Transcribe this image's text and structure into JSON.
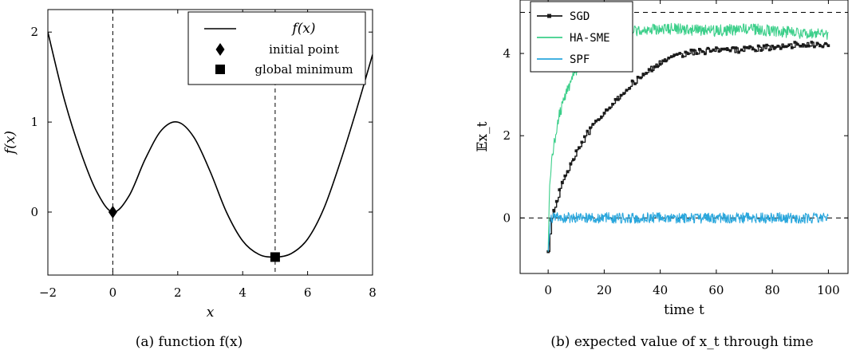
{
  "chart_data": [
    {
      "type": "line",
      "caption": "(a) function f(x)",
      "xlabel": "x",
      "ylabel": "f(x)",
      "xlim": [
        -2,
        8
      ],
      "ylim": [
        -0.7,
        2.25
      ],
      "xticks": [
        -2,
        0,
        2,
        4,
        6,
        8
      ],
      "yticks": [
        0,
        1,
        2
      ],
      "xtick_labels": [
        "−2",
        "0",
        "2",
        "4",
        "6",
        "8"
      ],
      "ytick_labels": [
        "0",
        "1",
        "2"
      ],
      "grid": false,
      "legend_position": "top-right",
      "vlines": [
        0,
        5
      ],
      "series": [
        {
          "name": "f(x)",
          "x": [
            -2,
            -1.5,
            -1,
            -0.5,
            0,
            0.5,
            1,
            1.5,
            2,
            2.5,
            3,
            3.5,
            4,
            4.5,
            5,
            5.5,
            6,
            6.5,
            7,
            7.5,
            8
          ],
          "y": [
            2.0,
            1.26,
            0.68,
            0.23,
            0.0,
            0.18,
            0.59,
            0.91,
            1.0,
            0.83,
            0.45,
            0.0,
            -0.32,
            -0.47,
            -0.5,
            -0.46,
            -0.3,
            0.04,
            0.55,
            1.13,
            1.75
          ]
        }
      ],
      "points": [
        {
          "name": "initial point",
          "x": 0,
          "y": 0,
          "marker": "diamond"
        },
        {
          "name": "global minimum",
          "x": 5,
          "y": -0.5,
          "marker": "square"
        }
      ]
    },
    {
      "type": "line",
      "caption": "(b) expected value of x_t through time",
      "xlabel": "time t",
      "ylabel": "𝔼x_t",
      "xlim": [
        -10,
        107
      ],
      "ylim": [
        -1.35,
        5.3
      ],
      "xticks": [
        0,
        20,
        40,
        60,
        80,
        100
      ],
      "yticks": [
        0,
        2,
        4
      ],
      "xtick_labels": [
        "0",
        "20",
        "40",
        "60",
        "80",
        "100"
      ],
      "ytick_labels": [
        "0",
        "2",
        "4"
      ],
      "grid": false,
      "legend_position": "top-left",
      "hlines": [
        0,
        5
      ],
      "series": [
        {
          "name": "SGD",
          "color": "#1a1a1a",
          "x": [
            0,
            1,
            2,
            3,
            4,
            5,
            7,
            9,
            11,
            13,
            15,
            18,
            21,
            24,
            27,
            30,
            33,
            36,
            40,
            45,
            50,
            55,
            60,
            65,
            70,
            75,
            80,
            85,
            90,
            95,
            100
          ],
          "y": [
            -0.82,
            0.0,
            0.22,
            0.45,
            0.65,
            0.82,
            1.15,
            1.45,
            1.72,
            1.95,
            2.15,
            2.42,
            2.66,
            2.88,
            3.08,
            3.27,
            3.44,
            3.6,
            3.78,
            3.93,
            4.02,
            4.05,
            4.07,
            4.08,
            4.1,
            4.12,
            4.15,
            4.2,
            4.22,
            4.2,
            4.25
          ]
        },
        {
          "name": "HA-SME",
          "color": "#3ccf8a",
          "x": [
            0,
            0.5,
            1,
            2,
            3,
            4,
            6,
            8,
            10,
            12,
            15,
            18,
            21,
            25,
            30,
            35,
            40,
            50,
            60,
            70,
            80,
            90,
            100
          ],
          "y": [
            -0.82,
            0.8,
            1.2,
            1.75,
            2.15,
            2.5,
            2.95,
            3.3,
            3.6,
            3.85,
            4.1,
            4.3,
            4.42,
            4.5,
            4.55,
            4.58,
            4.6,
            4.58,
            4.55,
            4.6,
            4.55,
            4.5,
            4.45
          ]
        },
        {
          "name": "SPF",
          "color": "#2aa7dd",
          "x": [
            0,
            1,
            2,
            4,
            6,
            10,
            20,
            30,
            40,
            50,
            60,
            70,
            80,
            90,
            100
          ],
          "y": [
            -0.82,
            0.0,
            0.02,
            0.0,
            0.01,
            0.0,
            0.0,
            0.0,
            0.0,
            0.0,
            0.0,
            0.0,
            0.0,
            0.0,
            0.0
          ]
        }
      ]
    }
  ]
}
